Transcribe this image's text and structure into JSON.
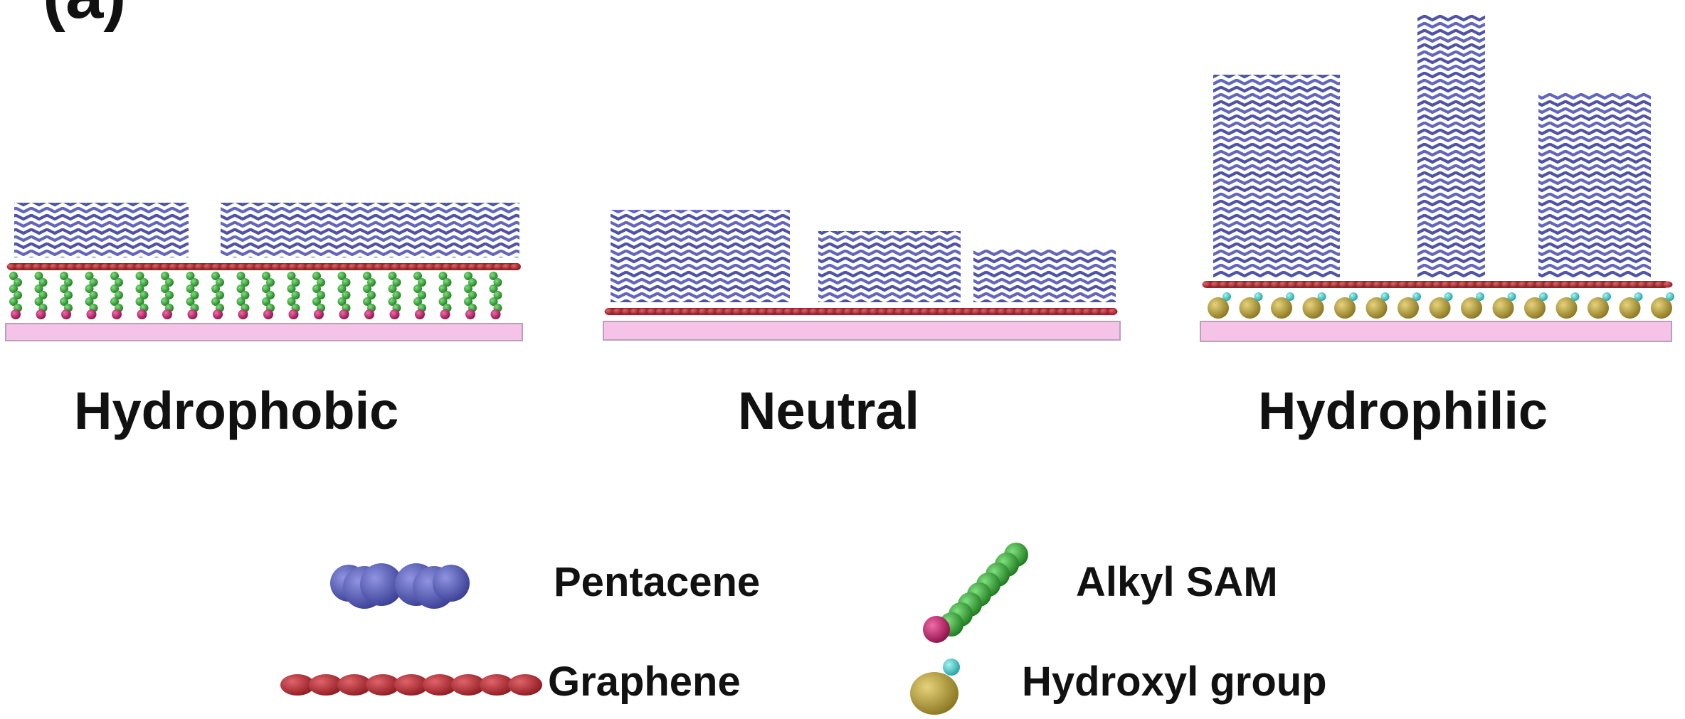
{
  "figure": {
    "panel_letter": "(a)",
    "panels": [
      {
        "id": "hydrophobic",
        "label": "Hydrophobic",
        "film_stacks": 2,
        "under_layer": "Alkyl SAM"
      },
      {
        "id": "neutral",
        "label": "Neutral",
        "film_stacks": 3,
        "under_layer": "none"
      },
      {
        "id": "hydrophilic",
        "label": "Hydrophilic",
        "film_stacks": 3,
        "under_layer": "Hydroxyl group"
      }
    ],
    "legend": [
      {
        "id": "pentacene",
        "label": "Pentacene",
        "icon": "pentacene-molecule-icon"
      },
      {
        "id": "alkyl-sam",
        "label": "Alkyl SAM",
        "icon": "alkyl-sam-chain-icon"
      },
      {
        "id": "graphene",
        "label": "Graphene",
        "icon": "graphene-sheet-icon"
      },
      {
        "id": "hydroxyl",
        "label": "Hydroxyl group",
        "icon": "hydroxyl-group-icon"
      }
    ],
    "colors": {
      "pentacene": "#5b5fb3",
      "graphene": "#b0262c",
      "alkyl_sam": "#2e9b2e",
      "sam_head": "#c2185b",
      "hydroxyl_body": "#b8a133",
      "hydroxyl_h": "#33c6c6",
      "substrate": "#f6c3e8"
    }
  }
}
